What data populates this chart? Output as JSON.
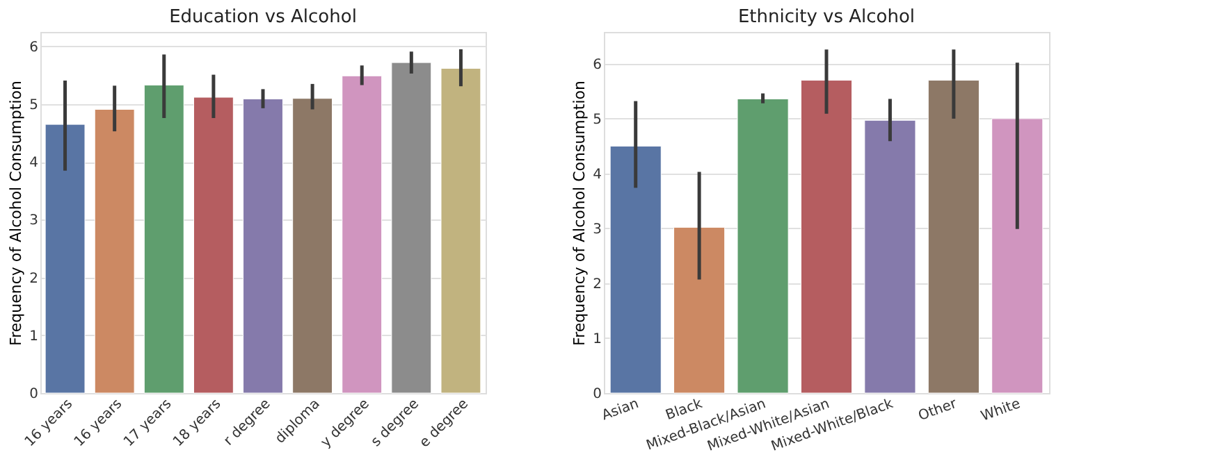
{
  "chart_data": [
    {
      "type": "bar",
      "title": "Education vs Alcohol",
      "ylabel": "Frequency of Alcohol Consumption",
      "categories": [
        "16 years",
        "16 years",
        "17 years",
        "18 years",
        "r degree",
        "diploma",
        "y degree",
        "s degree",
        "e degree"
      ],
      "values": [
        4.65,
        4.91,
        5.33,
        5.12,
        5.09,
        5.1,
        5.49,
        5.72,
        5.62
      ],
      "errors": [
        [
          3.85,
          5.41
        ],
        [
          4.53,
          5.32
        ],
        [
          4.76,
          5.86
        ],
        [
          4.76,
          5.51
        ],
        [
          4.93,
          5.26
        ],
        [
          4.91,
          5.35
        ],
        [
          5.33,
          5.67
        ],
        [
          5.53,
          5.91
        ],
        [
          5.31,
          5.95
        ]
      ],
      "colors": [
        "#5975a4",
        "#cc8963",
        "#5f9e6e",
        "#b55d60",
        "#857aab",
        "#8d7866",
        "#d095bf",
        "#8c8c8c",
        "#c1b37f"
      ],
      "ylim": [
        0,
        6.25
      ],
      "yticks": [
        0,
        1,
        2,
        3,
        4,
        5,
        6
      ],
      "grid": "y"
    },
    {
      "type": "bar",
      "title": "Ethnicity vs Alcohol",
      "ylabel": "Frequency of Alcohol Consumption",
      "categories": [
        "Asian",
        "Black",
        "Mixed-Black/Asian",
        "Mixed-White/Asian",
        "Mixed-White/Black",
        "Other",
        "White"
      ],
      "values": [
        4.5,
        3.02,
        5.36,
        5.7,
        4.97,
        5.7,
        5.0
      ],
      "errors": [
        [
          3.74,
          5.32
        ],
        [
          2.07,
          4.03
        ],
        [
          5.28,
          5.46
        ],
        [
          5.09,
          6.26
        ],
        [
          4.59,
          5.36
        ],
        [
          5.0,
          6.26
        ],
        [
          2.99,
          6.02
        ]
      ],
      "colors": [
        "#5975a4",
        "#cc8963",
        "#5f9e6e",
        "#b55d60",
        "#857aab",
        "#8d7866",
        "#d095bf"
      ],
      "ylim": [
        0,
        6.58
      ],
      "yticks": [
        0,
        1,
        2,
        3,
        4,
        5,
        6
      ],
      "grid": "y"
    }
  ]
}
